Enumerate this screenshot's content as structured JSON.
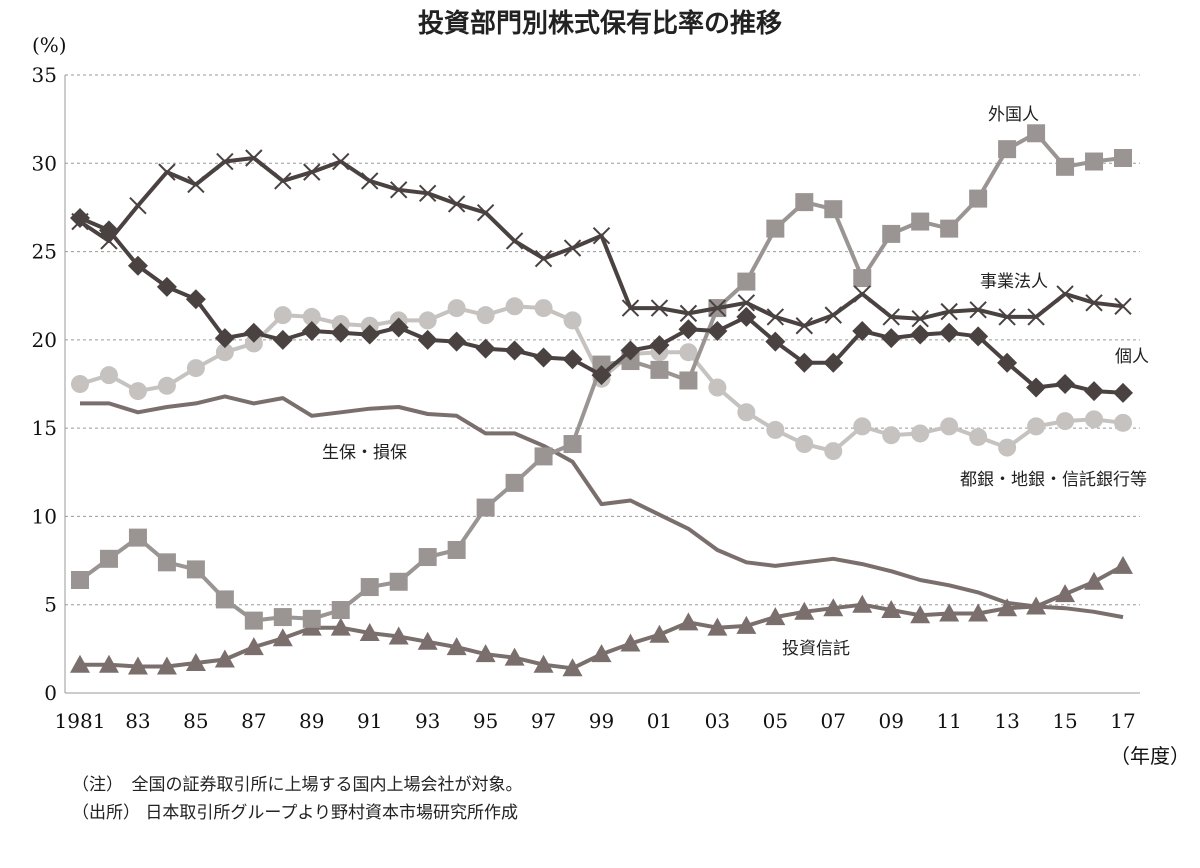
{
  "notes": [
    "（注）　全国の証券取引所に上場する国内上場会社が対象。",
    "（出所） 日本取引所グループより野村資本市場研究所作成"
  ],
  "chart_data": {
    "type": "line",
    "title": "投資部門別株式保有比率の推移",
    "ylabel": "(%)",
    "xlabel": "（年度）",
    "ylim": [
      0,
      35
    ],
    "yticks": [
      0,
      5,
      10,
      15,
      20,
      25,
      30,
      35
    ],
    "xlim": [
      1981,
      2017
    ],
    "xtick_values": [
      1981,
      1983,
      1985,
      1987,
      1989,
      1991,
      1993,
      1995,
      1997,
      1999,
      2001,
      2003,
      2005,
      2007,
      2009,
      2011,
      2013,
      2015,
      2017
    ],
    "xtick_labels": [
      "1981",
      "83",
      "85",
      "87",
      "89",
      "91",
      "93",
      "95",
      "97",
      "99",
      "01",
      "03",
      "05",
      "07",
      "09",
      "11",
      "13",
      "15",
      "17"
    ],
    "grid": "horizontal-dashed",
    "x": [
      1981,
      1982,
      1983,
      1984,
      1985,
      1986,
      1987,
      1988,
      1989,
      1990,
      1991,
      1992,
      1993,
      1994,
      1995,
      1996,
      1997,
      1998,
      1999,
      2000,
      2001,
      2002,
      2003,
      2004,
      2005,
      2006,
      2007,
      2008,
      2009,
      2010,
      2011,
      2012,
      2013,
      2014,
      2015,
      2016,
      2017
    ],
    "series": [
      {
        "name": "事業法人",
        "marker": "x",
        "color": "#4a4240",
        "values": [
          26.7,
          25.6,
          27.6,
          29.5,
          28.8,
          30.1,
          30.3,
          29.0,
          29.5,
          30.1,
          29.0,
          28.5,
          28.3,
          27.7,
          27.2,
          25.6,
          24.6,
          25.2,
          25.9,
          21.8,
          21.8,
          21.5,
          21.8,
          22.1,
          21.3,
          20.8,
          21.4,
          22.6,
          21.3,
          21.2,
          21.6,
          21.7,
          21.3,
          21.3,
          22.6,
          22.1,
          21.9
        ]
      },
      {
        "name": "個人",
        "marker": "diamond",
        "color": "#4a4240",
        "values": [
          26.9,
          26.2,
          24.2,
          23.0,
          22.3,
          20.1,
          20.4,
          20.0,
          20.5,
          20.4,
          20.3,
          20.7,
          20.0,
          19.9,
          19.5,
          19.4,
          19.0,
          18.9,
          18.0,
          19.4,
          19.7,
          20.6,
          20.5,
          21.3,
          19.9,
          18.7,
          18.7,
          20.5,
          20.1,
          20.3,
          20.4,
          20.2,
          18.7,
          17.3,
          17.5,
          17.1,
          17.0
        ]
      },
      {
        "name": "外国人",
        "marker": "square",
        "color": "#9a9593",
        "values": [
          6.4,
          7.6,
          8.8,
          7.4,
          7.0,
          5.3,
          4.1,
          4.3,
          4.2,
          4.7,
          6.0,
          6.3,
          7.7,
          8.1,
          10.5,
          11.9,
          13.4,
          14.1,
          18.6,
          18.8,
          18.3,
          17.7,
          21.8,
          23.3,
          26.3,
          27.8,
          27.4,
          23.5,
          26.0,
          26.7,
          26.3,
          28.0,
          30.8,
          31.7,
          29.8,
          30.1,
          30.3
        ]
      },
      {
        "name": "都銀・地銀・信託銀行等",
        "marker": "circle",
        "color": "#c6c2c0",
        "values": [
          17.5,
          18.0,
          17.1,
          17.4,
          18.4,
          19.3,
          19.8,
          21.4,
          21.3,
          20.9,
          20.8,
          21.1,
          21.1,
          21.8,
          21.4,
          21.9,
          21.8,
          21.1,
          17.8,
          19.2,
          19.3,
          19.3,
          17.3,
          15.9,
          14.9,
          14.1,
          13.7,
          15.1,
          14.6,
          14.7,
          15.1,
          14.5,
          13.9,
          15.1,
          15.4,
          15.5,
          15.3
        ]
      },
      {
        "name": "生保・損保",
        "marker": "none",
        "color": "#7a6f6c",
        "values": [
          16.4,
          16.4,
          15.9,
          16.2,
          16.4,
          16.8,
          16.4,
          16.7,
          15.7,
          15.9,
          16.1,
          16.2,
          15.8,
          15.7,
          14.7,
          14.7,
          14.0,
          13.1,
          10.7,
          10.9,
          10.1,
          9.3,
          8.1,
          7.4,
          7.2,
          7.4,
          7.6,
          7.3,
          6.9,
          6.4,
          6.1,
          5.7,
          5.1,
          4.9,
          4.8,
          4.6,
          4.3
        ]
      },
      {
        "name": "投資信託",
        "marker": "triangle",
        "color": "#7a6f6c",
        "values": [
          1.6,
          1.6,
          1.5,
          1.5,
          1.7,
          1.9,
          2.6,
          3.1,
          3.7,
          3.7,
          3.4,
          3.2,
          2.9,
          2.6,
          2.2,
          2.0,
          1.6,
          1.4,
          2.2,
          2.8,
          3.3,
          4.0,
          3.7,
          3.8,
          4.3,
          4.6,
          4.8,
          5.0,
          4.7,
          4.4,
          4.5,
          4.5,
          4.8,
          4.9,
          5.6,
          6.3,
          7.2
        ]
      }
    ]
  }
}
